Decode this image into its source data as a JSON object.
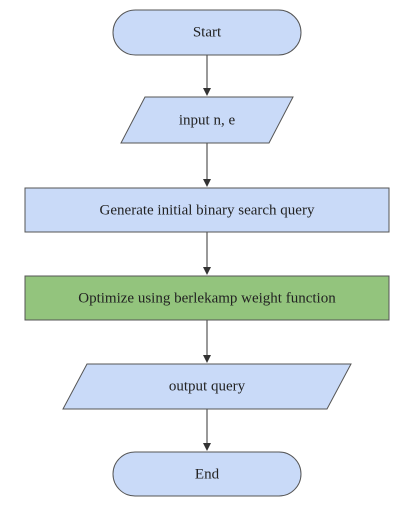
{
  "flowchart": {
    "nodes": [
      {
        "id": "start",
        "shape": "terminal",
        "label": "Start",
        "fill": "#c9daf8",
        "stroke": "#555555"
      },
      {
        "id": "input",
        "shape": "parallelogram",
        "label": "input n, e",
        "fill": "#c9daf8",
        "stroke": "#555555"
      },
      {
        "id": "generate",
        "shape": "process",
        "label": "Generate initial binary search query",
        "fill": "#c9daf8",
        "stroke": "#555555"
      },
      {
        "id": "optimize",
        "shape": "process",
        "label": "Optimize using berlekamp weight function",
        "fill": "#93c47d",
        "stroke": "#555555"
      },
      {
        "id": "output",
        "shape": "parallelogram",
        "label": "output query",
        "fill": "#c9daf8",
        "stroke": "#555555"
      },
      {
        "id": "end",
        "shape": "terminal",
        "label": "End",
        "fill": "#c9daf8",
        "stroke": "#555555"
      }
    ],
    "edges": [
      {
        "from": "start",
        "to": "input"
      },
      {
        "from": "input",
        "to": "generate"
      },
      {
        "from": "generate",
        "to": "optimize"
      },
      {
        "from": "optimize",
        "to": "output"
      },
      {
        "from": "output",
        "to": "end"
      }
    ],
    "edge_color": "#333333"
  }
}
